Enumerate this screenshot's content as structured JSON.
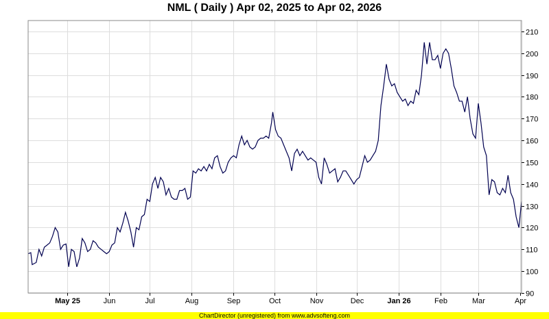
{
  "chart_data": {
    "type": "line",
    "title": "NML ( Daily ) Apr 02, 2025 to Apr 02, 2026",
    "xlabel": "",
    "ylabel": "",
    "ylim": [
      90,
      215
    ],
    "yticks": [
      90,
      100,
      110,
      120,
      130,
      140,
      150,
      160,
      170,
      180,
      190,
      200,
      210
    ],
    "xticks": [
      {
        "label": "May 25",
        "date": "2025-05-01",
        "bold": true
      },
      {
        "label": "Jun",
        "date": "2025-06-01",
        "bold": false
      },
      {
        "label": "Jul",
        "date": "2025-07-01",
        "bold": false
      },
      {
        "label": "Aug",
        "date": "2025-08-01",
        "bold": false
      },
      {
        "label": "Sep",
        "date": "2025-09-01",
        "bold": false
      },
      {
        "label": "Oct",
        "date": "2025-10-01",
        "bold": false
      },
      {
        "label": "Nov",
        "date": "2025-11-01",
        "bold": false
      },
      {
        "label": "Dec",
        "date": "2025-12-01",
        "bold": false
      },
      {
        "label": "Jan 26",
        "date": "2026-01-01",
        "bold": true
      },
      {
        "label": "Feb",
        "date": "2026-02-01",
        "bold": false
      },
      {
        "label": "Mar",
        "date": "2026-03-01",
        "bold": false
      },
      {
        "label": "Apr",
        "date": "2026-04-01",
        "bold": false
      }
    ],
    "xrange": [
      "2025-04-02",
      "2026-04-02"
    ],
    "grid": true,
    "line_color": "#000050",
    "series": [
      {
        "values": [
          [
            "2025-04-02",
            108
          ],
          [
            "2025-04-04",
            108.5
          ],
          [
            "2025-04-05",
            103
          ],
          [
            "2025-04-08",
            104
          ],
          [
            "2025-04-10",
            110
          ],
          [
            "2025-04-12",
            107
          ],
          [
            "2025-04-14",
            111
          ],
          [
            "2025-04-16",
            112
          ],
          [
            "2025-04-18",
            113
          ],
          [
            "2025-04-20",
            116
          ],
          [
            "2025-04-22",
            120
          ],
          [
            "2025-04-24",
            118
          ],
          [
            "2025-04-26",
            110
          ],
          [
            "2025-04-28",
            112
          ],
          [
            "2025-04-30",
            112.5
          ],
          [
            "2025-05-02",
            102
          ],
          [
            "2025-05-04",
            110
          ],
          [
            "2025-05-06",
            109
          ],
          [
            "2025-05-08",
            102
          ],
          [
            "2025-05-10",
            106
          ],
          [
            "2025-05-12",
            115
          ],
          [
            "2025-05-14",
            113
          ],
          [
            "2025-05-16",
            109
          ],
          [
            "2025-05-18",
            110
          ],
          [
            "2025-05-20",
            114
          ],
          [
            "2025-05-22",
            113
          ],
          [
            "2025-05-24",
            111
          ],
          [
            "2025-05-26",
            110
          ],
          [
            "2025-05-28",
            109
          ],
          [
            "2025-05-30",
            108
          ],
          [
            "2025-06-01",
            109
          ],
          [
            "2025-06-03",
            112
          ],
          [
            "2025-06-05",
            113
          ],
          [
            "2025-06-07",
            120
          ],
          [
            "2025-06-09",
            118
          ],
          [
            "2025-06-11",
            122
          ],
          [
            "2025-06-13",
            127
          ],
          [
            "2025-06-15",
            123
          ],
          [
            "2025-06-17",
            118
          ],
          [
            "2025-06-19",
            111
          ],
          [
            "2025-06-21",
            120
          ],
          [
            "2025-06-23",
            119
          ],
          [
            "2025-06-25",
            125
          ],
          [
            "2025-06-27",
            126
          ],
          [
            "2025-06-29",
            133
          ],
          [
            "2025-07-01",
            132
          ],
          [
            "2025-07-03",
            140
          ],
          [
            "2025-07-05",
            143
          ],
          [
            "2025-07-07",
            138
          ],
          [
            "2025-07-09",
            143
          ],
          [
            "2025-07-11",
            141
          ],
          [
            "2025-07-13",
            135
          ],
          [
            "2025-07-15",
            138
          ],
          [
            "2025-07-17",
            134
          ],
          [
            "2025-07-19",
            133
          ],
          [
            "2025-07-21",
            133
          ],
          [
            "2025-07-23",
            137
          ],
          [
            "2025-07-25",
            137
          ],
          [
            "2025-07-27",
            138
          ],
          [
            "2025-07-29",
            133
          ],
          [
            "2025-07-31",
            134
          ],
          [
            "2025-08-02",
            146
          ],
          [
            "2025-08-04",
            145
          ],
          [
            "2025-08-06",
            147
          ],
          [
            "2025-08-08",
            146
          ],
          [
            "2025-08-10",
            148
          ],
          [
            "2025-08-12",
            146
          ],
          [
            "2025-08-14",
            149
          ],
          [
            "2025-08-16",
            147
          ],
          [
            "2025-08-18",
            152
          ],
          [
            "2025-08-20",
            153
          ],
          [
            "2025-08-22",
            148
          ],
          [
            "2025-08-24",
            145
          ],
          [
            "2025-08-26",
            146
          ],
          [
            "2025-08-28",
            150
          ],
          [
            "2025-08-30",
            152
          ],
          [
            "2025-09-01",
            153
          ],
          [
            "2025-09-03",
            152
          ],
          [
            "2025-09-05",
            158
          ],
          [
            "2025-09-07",
            162
          ],
          [
            "2025-09-09",
            158
          ],
          [
            "2025-09-11",
            160
          ],
          [
            "2025-09-13",
            157
          ],
          [
            "2025-09-15",
            156
          ],
          [
            "2025-09-17",
            157
          ],
          [
            "2025-09-19",
            160
          ],
          [
            "2025-09-21",
            161
          ],
          [
            "2025-09-23",
            161
          ],
          [
            "2025-09-25",
            162
          ],
          [
            "2025-09-27",
            161
          ],
          [
            "2025-09-29",
            168
          ],
          [
            "2025-09-30",
            173
          ],
          [
            "2025-10-02",
            165
          ],
          [
            "2025-10-04",
            162
          ],
          [
            "2025-10-06",
            161
          ],
          [
            "2025-10-08",
            158
          ],
          [
            "2025-10-10",
            155
          ],
          [
            "2025-10-12",
            152
          ],
          [
            "2025-10-14",
            146
          ],
          [
            "2025-10-16",
            154
          ],
          [
            "2025-10-18",
            156
          ],
          [
            "2025-10-20",
            153
          ],
          [
            "2025-10-22",
            155
          ],
          [
            "2025-10-24",
            153
          ],
          [
            "2025-10-26",
            151
          ],
          [
            "2025-10-28",
            152
          ],
          [
            "2025-10-30",
            151
          ],
          [
            "2025-11-01",
            150
          ],
          [
            "2025-11-03",
            143
          ],
          [
            "2025-11-05",
            140
          ],
          [
            "2025-11-07",
            152
          ],
          [
            "2025-11-09",
            149
          ],
          [
            "2025-11-11",
            145
          ],
          [
            "2025-11-13",
            146
          ],
          [
            "2025-11-15",
            147
          ],
          [
            "2025-11-17",
            141
          ],
          [
            "2025-11-19",
            143
          ],
          [
            "2025-11-21",
            146
          ],
          [
            "2025-11-23",
            146
          ],
          [
            "2025-11-25",
            144
          ],
          [
            "2025-11-27",
            142
          ],
          [
            "2025-11-29",
            140
          ],
          [
            "2025-12-01",
            142
          ],
          [
            "2025-12-03",
            143
          ],
          [
            "2025-12-05",
            148
          ],
          [
            "2025-12-07",
            153
          ],
          [
            "2025-12-09",
            150
          ],
          [
            "2025-12-11",
            151
          ],
          [
            "2025-12-13",
            153
          ],
          [
            "2025-12-15",
            155
          ],
          [
            "2025-12-17",
            160
          ],
          [
            "2025-12-19",
            176
          ],
          [
            "2025-12-21",
            185
          ],
          [
            "2025-12-23",
            195
          ],
          [
            "2025-12-25",
            188
          ],
          [
            "2025-12-27",
            185
          ],
          [
            "2025-12-29",
            186
          ],
          [
            "2025-12-31",
            182
          ],
          [
            "2026-01-02",
            180
          ],
          [
            "2026-01-04",
            178
          ],
          [
            "2026-01-06",
            179
          ],
          [
            "2026-01-08",
            176
          ],
          [
            "2026-01-10",
            178
          ],
          [
            "2026-01-12",
            177
          ],
          [
            "2026-01-14",
            183
          ],
          [
            "2026-01-16",
            181
          ],
          [
            "2026-01-18",
            190
          ],
          [
            "2026-01-20",
            205
          ],
          [
            "2026-01-22",
            195
          ],
          [
            "2026-01-24",
            205
          ],
          [
            "2026-01-26",
            197
          ],
          [
            "2026-01-28",
            197
          ],
          [
            "2026-01-30",
            199
          ],
          [
            "2026-02-01",
            193
          ],
          [
            "2026-02-03",
            200
          ],
          [
            "2026-02-05",
            202
          ],
          [
            "2026-02-07",
            200
          ],
          [
            "2026-02-09",
            193
          ],
          [
            "2026-02-11",
            185
          ],
          [
            "2026-02-13",
            182
          ],
          [
            "2026-02-15",
            178
          ],
          [
            "2026-02-17",
            178
          ],
          [
            "2026-02-19",
            173
          ],
          [
            "2026-02-21",
            180
          ],
          [
            "2026-02-23",
            170
          ],
          [
            "2026-02-25",
            163
          ],
          [
            "2026-02-27",
            161
          ],
          [
            "2026-03-01",
            177
          ],
          [
            "2026-03-03",
            168
          ],
          [
            "2026-03-05",
            157
          ],
          [
            "2026-03-07",
            153
          ],
          [
            "2026-03-09",
            135
          ],
          [
            "2026-03-11",
            142
          ],
          [
            "2026-03-13",
            141
          ],
          [
            "2026-03-15",
            136
          ],
          [
            "2026-03-17",
            135
          ],
          [
            "2026-03-19",
            138
          ],
          [
            "2026-03-21",
            136
          ],
          [
            "2026-03-23",
            144
          ],
          [
            "2026-03-25",
            136
          ],
          [
            "2026-03-27",
            133
          ],
          [
            "2026-03-29",
            125
          ],
          [
            "2026-03-31",
            120
          ],
          [
            "2026-04-02",
            132
          ]
        ]
      }
    ]
  },
  "footer": {
    "text": "ChartDirector (unregistered) from www.advsofteng.com",
    "background": "#ffff00"
  }
}
